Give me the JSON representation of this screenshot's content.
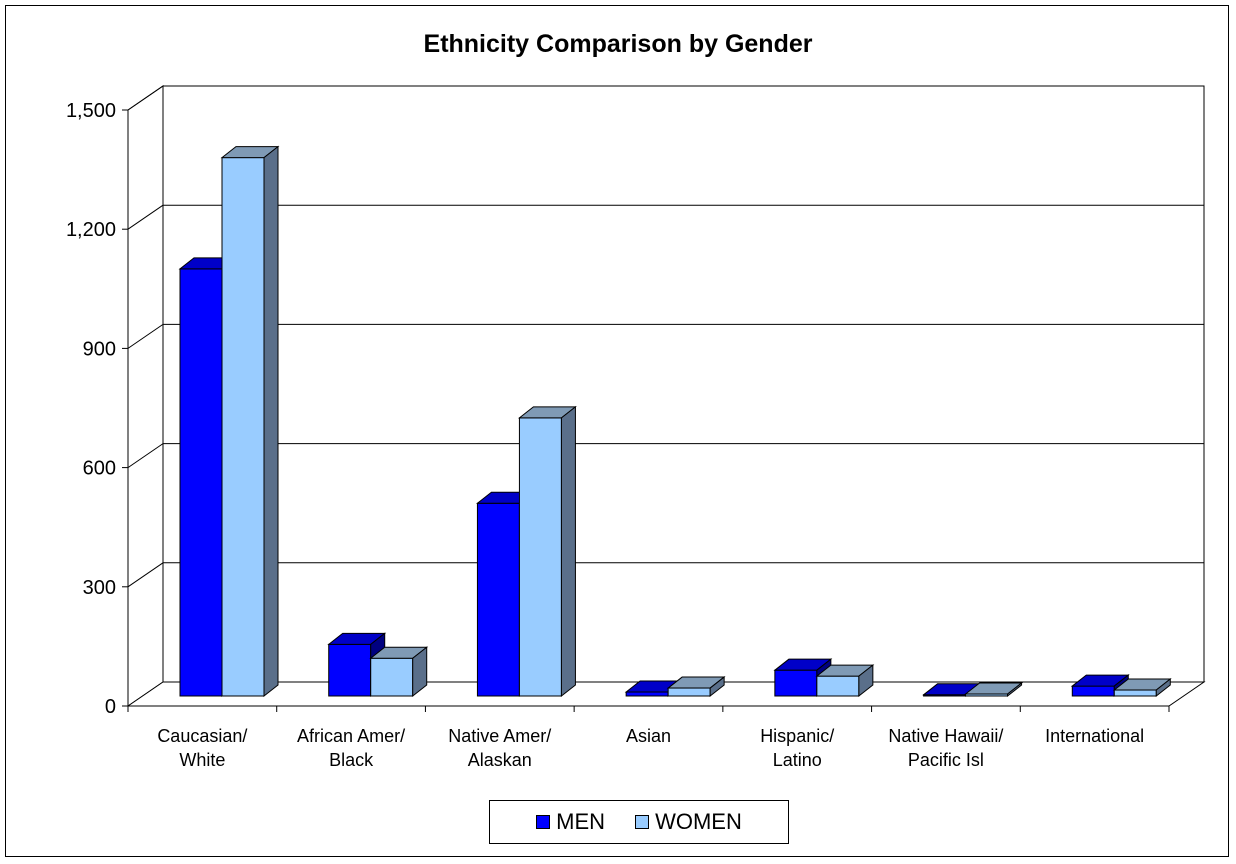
{
  "chart_data": {
    "type": "bar",
    "title": "Ethnicity Comparison by Gender",
    "xlabel": "",
    "ylabel": "",
    "ylim": [
      0,
      1500
    ],
    "yticks": [
      "0",
      "300",
      "600",
      "900",
      "1,200",
      "1,500"
    ],
    "ytick_values": [
      0,
      300,
      600,
      900,
      1200,
      1500
    ],
    "categories": [
      [
        "Caucasian/",
        "White"
      ],
      [
        "African Amer/",
        "Black"
      ],
      [
        "Native Amer/",
        "Alaskan"
      ],
      [
        "Asian"
      ],
      [
        "Hispanic/",
        "Latino"
      ],
      [
        "Native Hawaii/",
        "Pacific Isl"
      ],
      [
        "International"
      ]
    ],
    "series": [
      {
        "name": "MEN",
        "color": "#0000ff",
        "values": [
          1075,
          130,
          485,
          10,
          65,
          3,
          25
        ]
      },
      {
        "name": "WOMEN",
        "color": "#99ccff",
        "values": [
          1355,
          95,
          700,
          20,
          50,
          5,
          15
        ]
      }
    ],
    "grid": true,
    "legend": "bottom"
  }
}
